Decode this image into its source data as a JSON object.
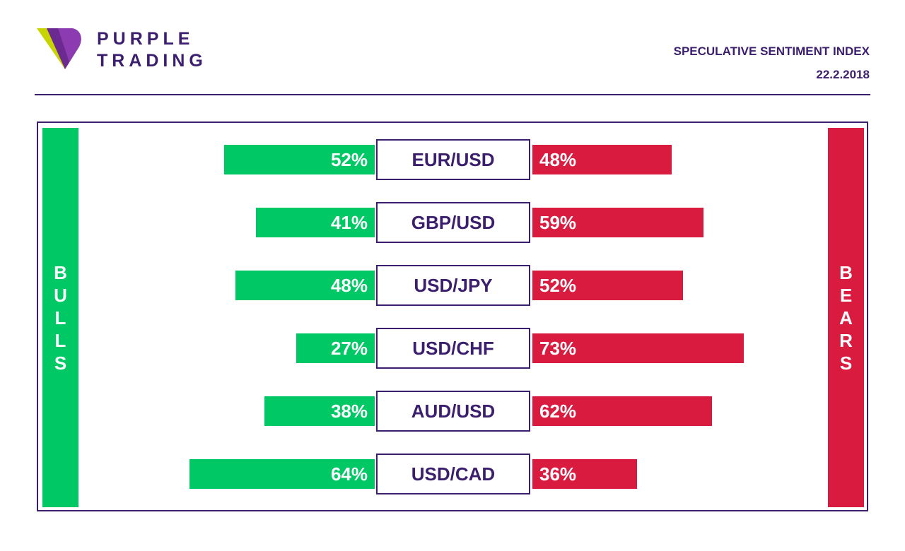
{
  "brand": {
    "line1": "PURPLE",
    "line2": "TRADING"
  },
  "header": {
    "title": "SPECULATIVE SENTIMENT INDEX",
    "date": "22.2.2018"
  },
  "colors": {
    "bulls": "#00c865",
    "bears": "#d91b40",
    "brand_purple": "#3b1f6e"
  },
  "sides": {
    "bulls_label": "BULLS",
    "bears_label": "BEARS"
  },
  "chart_data": {
    "type": "bar",
    "categories": [
      "EUR/USD",
      "GBP/USD",
      "USD/JPY",
      "USD/CHF",
      "AUD/USD",
      "USD/CAD"
    ],
    "series": [
      {
        "name": "BULLS",
        "values": [
          52,
          41,
          48,
          27,
          38,
          64
        ]
      },
      {
        "name": "BEARS",
        "values": [
          48,
          59,
          52,
          73,
          62,
          36
        ]
      }
    ],
    "value_suffix": "%",
    "ylim": [
      0,
      100
    ]
  }
}
